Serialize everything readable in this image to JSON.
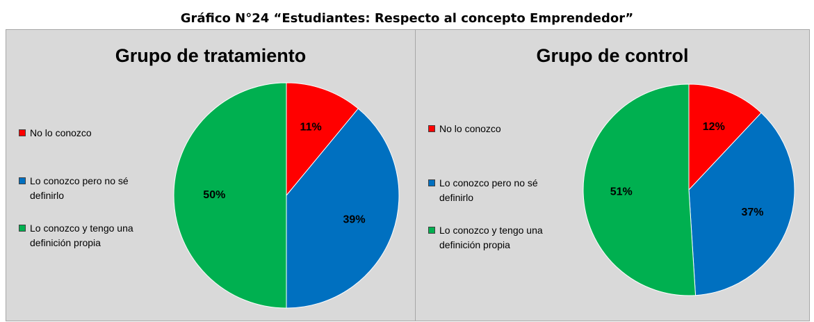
{
  "title": "Gráfico N°24 “Estudiantes: Respecto al concepto Emprendedor”",
  "chart_data": [
    {
      "type": "pie",
      "title": "Grupo de tratamiento",
      "categories": [
        "No lo conozco",
        "Lo conozco pero no sé definirlo",
        "Lo conozco y tengo una definición propia"
      ],
      "values": [
        11,
        39,
        50
      ],
      "value_labels": [
        "11%",
        "39%",
        "50%"
      ],
      "colors": [
        "#ff0000",
        "#0070c0",
        "#00b050"
      ],
      "legend": "left"
    },
    {
      "type": "pie",
      "title": "Grupo de control",
      "categories": [
        "No lo conozco",
        "Lo conozco pero no sé definirlo",
        "Lo conozco y tengo una definición propia"
      ],
      "values": [
        12,
        37,
        51
      ],
      "value_labels": [
        "12%",
        "37%",
        "51%"
      ],
      "colors": [
        "#ff0000",
        "#0070c0",
        "#00b050"
      ],
      "legend": "left"
    }
  ]
}
